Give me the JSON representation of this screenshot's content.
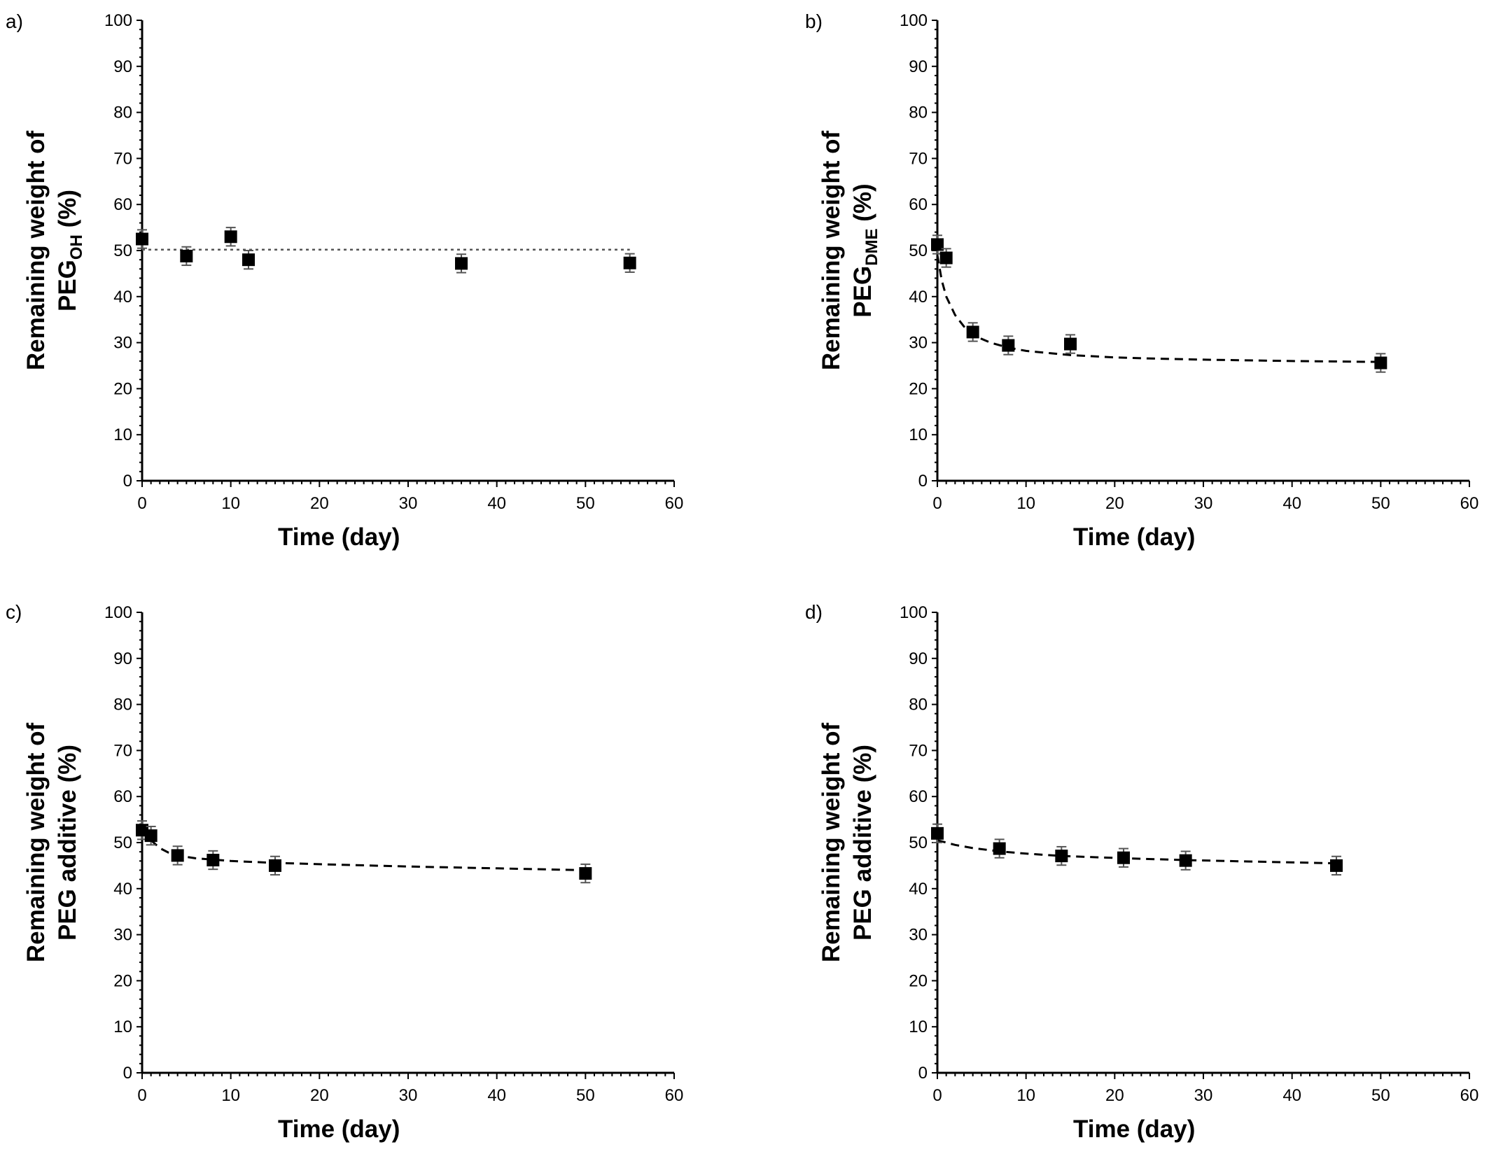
{
  "chart_data": [
    {
      "type": "scatter",
      "panel_label": "a)",
      "xlabel": "Time (day)",
      "ylabel_line1": "Remaining weight of",
      "ylabel_line2_main": "PEG",
      "ylabel_line2_sub": "OH",
      "ylabel_line2_tail": " (%)",
      "xlim": [
        0,
        60
      ],
      "ylim": [
        0,
        100
      ],
      "x_ticks": [
        "0",
        "10",
        "20",
        "30",
        "40",
        "50",
        "60"
      ],
      "y_ticks": [
        "0",
        "10",
        "20",
        "30",
        "40",
        "50",
        "60",
        "70",
        "80",
        "90",
        "100"
      ],
      "points": [
        {
          "x": 0,
          "y": 52.5,
          "err": 2
        },
        {
          "x": 5,
          "y": 48.8,
          "err": 2
        },
        {
          "x": 10,
          "y": 53,
          "err": 2
        },
        {
          "x": 12,
          "y": 48,
          "err": 2
        },
        {
          "x": 36,
          "y": 47.2,
          "err": 2
        },
        {
          "x": 55,
          "y": 47.3,
          "err": 2
        }
      ],
      "fit": {
        "style": "dotted",
        "x": [
          0,
          2,
          5,
          10,
          20,
          30,
          40,
          55
        ],
        "y": [
          50.2,
          50.2,
          50.2,
          50.2,
          50.2,
          50.2,
          50.2,
          50.2
        ]
      }
    },
    {
      "type": "scatter",
      "panel_label": "b)",
      "xlabel": "Time (day)",
      "ylabel_line1": "Remaining weight of",
      "ylabel_line2_main": "PEG",
      "ylabel_line2_sub": "DME",
      "ylabel_line2_tail": " (%)",
      "xlim": [
        0,
        60
      ],
      "ylim": [
        0,
        100
      ],
      "x_ticks": [
        "0",
        "10",
        "20",
        "30",
        "40",
        "50",
        "60"
      ],
      "y_ticks": [
        "0",
        "10",
        "20",
        "30",
        "40",
        "50",
        "60",
        "70",
        "80",
        "90",
        "100"
      ],
      "points": [
        {
          "x": 0,
          "y": 51.3,
          "err": 2
        },
        {
          "x": 1,
          "y": 48.4,
          "err": 2
        },
        {
          "x": 4,
          "y": 32.3,
          "err": 2
        },
        {
          "x": 8,
          "y": 29.4,
          "err": 2
        },
        {
          "x": 15,
          "y": 29.7,
          "err": 2
        },
        {
          "x": 50,
          "y": 25.6,
          "err": 2
        }
      ],
      "fit": {
        "style": "dashed",
        "x": [
          0,
          0.5,
          1,
          2,
          3,
          4,
          5,
          6,
          8,
          10,
          15,
          20,
          25,
          30,
          40,
          50
        ],
        "y": [
          49,
          43.5,
          40,
          36,
          33.5,
          32,
          30.8,
          30,
          28.9,
          28.2,
          27.3,
          26.8,
          26.5,
          26.3,
          26,
          25.8
        ]
      }
    },
    {
      "type": "scatter",
      "panel_label": "c)",
      "xlabel": "Time (day)",
      "ylabel_line1": "Remaining weight of",
      "ylabel_line2_main": "PEG additive (%)",
      "ylabel_line2_sub": "",
      "ylabel_line2_tail": "",
      "xlim": [
        0,
        60
      ],
      "ylim": [
        0,
        100
      ],
      "x_ticks": [
        "0",
        "10",
        "20",
        "30",
        "40",
        "50",
        "60"
      ],
      "y_ticks": [
        "0",
        "10",
        "20",
        "30",
        "40",
        "50",
        "60",
        "70",
        "80",
        "90",
        "100"
      ],
      "points": [
        {
          "x": 0,
          "y": 52.7,
          "err": 2
        },
        {
          "x": 1,
          "y": 51.5,
          "err": 2
        },
        {
          "x": 4,
          "y": 47.2,
          "err": 2
        },
        {
          "x": 8,
          "y": 46.2,
          "err": 2
        },
        {
          "x": 15,
          "y": 45,
          "err": 2
        },
        {
          "x": 50,
          "y": 43.3,
          "err": 2
        }
      ],
      "fit": {
        "style": "dashed",
        "x": [
          0,
          1,
          2,
          3,
          4,
          6,
          8,
          10,
          15,
          20,
          30,
          40,
          50
        ],
        "y": [
          53,
          50.5,
          48.8,
          47.8,
          47.2,
          46.6,
          46.3,
          46,
          45.6,
          45.3,
          44.8,
          44.4,
          44
        ]
      }
    },
    {
      "type": "scatter",
      "panel_label": "d)",
      "xlabel": "Time (day)",
      "ylabel_line1": "Remaining weight of",
      "ylabel_line2_main": "PEG additive (%)",
      "ylabel_line2_sub": "",
      "ylabel_line2_tail": "",
      "xlim": [
        0,
        60
      ],
      "ylim": [
        0,
        100
      ],
      "x_ticks": [
        "0",
        "10",
        "20",
        "30",
        "40",
        "50",
        "60"
      ],
      "y_ticks": [
        "0",
        "10",
        "20",
        "30",
        "40",
        "50",
        "60",
        "70",
        "80",
        "90",
        "100"
      ],
      "points": [
        {
          "x": 0,
          "y": 52,
          "err": 2
        },
        {
          "x": 7,
          "y": 48.7,
          "err": 2
        },
        {
          "x": 14,
          "y": 47.1,
          "err": 2
        },
        {
          "x": 21,
          "y": 46.7,
          "err": 2
        },
        {
          "x": 28,
          "y": 46.1,
          "err": 2
        },
        {
          "x": 45,
          "y": 45,
          "err": 2
        }
      ],
      "fit": {
        "style": "dashed",
        "x": [
          0,
          2,
          4,
          7,
          10,
          14,
          21,
          28,
          35,
          45
        ],
        "y": [
          50.5,
          49.5,
          48.8,
          48.1,
          47.6,
          47.1,
          46.6,
          46.2,
          45.9,
          45.5
        ]
      }
    }
  ]
}
